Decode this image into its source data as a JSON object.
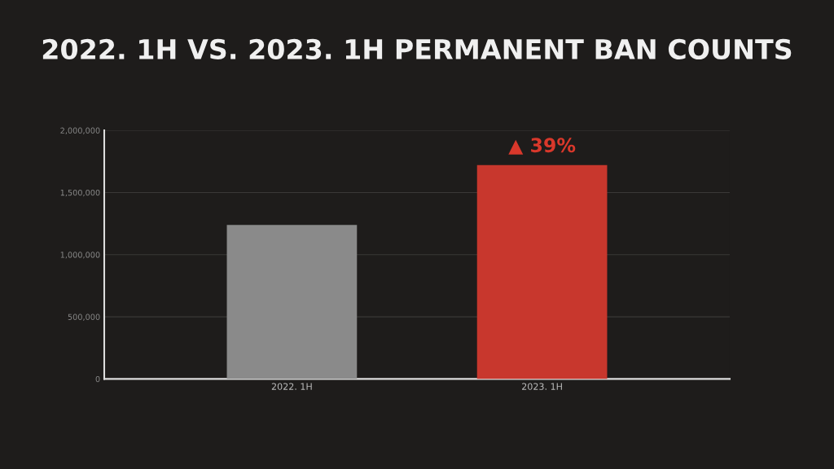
{
  "chart_data": {
    "type": "bar",
    "title": "2022. 1H VS. 2023. 1H PERMANENT BAN COUNTS",
    "categories": [
      "2022. 1H",
      "2023. 1H"
    ],
    "values": [
      1240000,
      1720000
    ],
    "colors": [
      "#8a8a8a",
      "#c8372d"
    ],
    "ylim": [
      0,
      2000000
    ],
    "yticks": [
      {
        "value": 0,
        "label": "0"
      },
      {
        "value": 500000,
        "label": "500,000"
      },
      {
        "value": 1000000,
        "label": "1,000,000"
      },
      {
        "value": 1500000,
        "label": "1,500,000"
      },
      {
        "value": 2000000,
        "label": "2,000,000"
      }
    ],
    "grid": "y",
    "annotations": [
      {
        "text": "▲ 39%",
        "x": "2023. 1H",
        "y": 1720000
      }
    ]
  }
}
